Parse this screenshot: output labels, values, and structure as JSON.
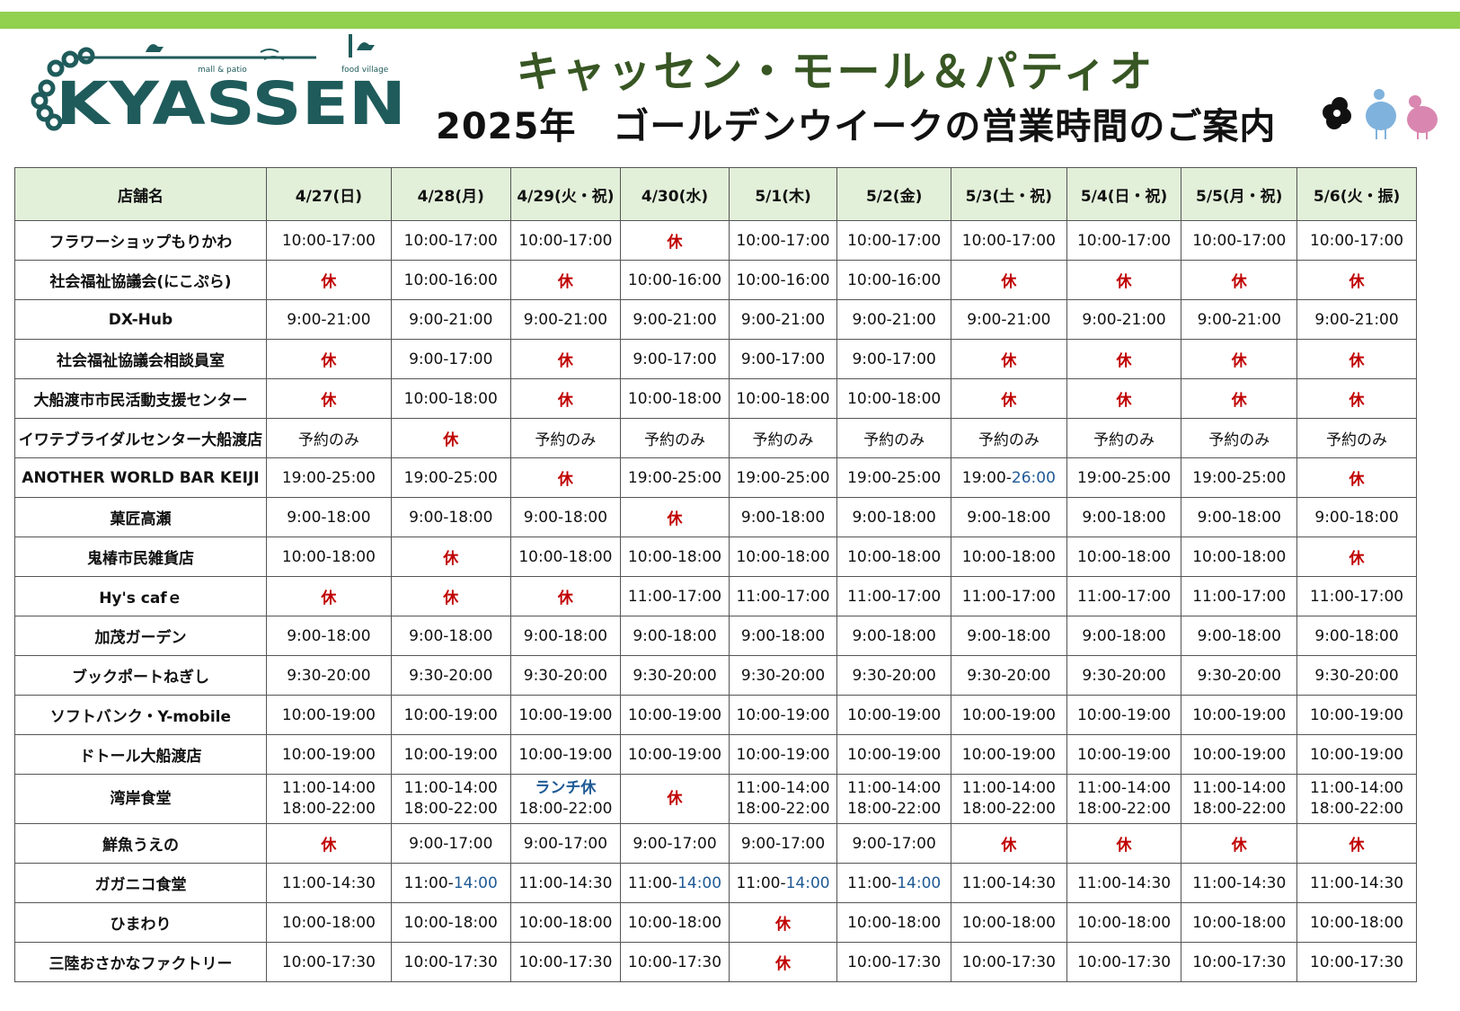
{
  "header": {
    "logo_text": "KYASSEN",
    "logo_small_1": "mall & patio",
    "logo_small_2": "food village",
    "title": "キャッセン・モール＆パティオ",
    "subtitle": "2025年　ゴールデンウイークの営業時間のご案内"
  },
  "colors": {
    "top_bar": "#92d050",
    "title_green": "#375623",
    "header_bg": "#e2efd9",
    "closed_red": "#c00000",
    "note_blue": "#1f5a96",
    "logo_teal": "#1f5b5b"
  },
  "table": {
    "columns": [
      "店舗名",
      "4/27(日)",
      "4/28(月)",
      "4/29(火・祝)",
      "4/30(水)",
      "5/1(木)",
      "5/2(金)",
      "5/3(土・祝)",
      "5/4(日・祝)",
      "5/5(月・祝)",
      "5/6(火・振)"
    ],
    "rows": [
      {
        "name": "フラワーショップもりかわ",
        "cells": [
          [
            "10:00-17:00"
          ],
          [
            "10:00-17:00"
          ],
          [
            "10:00-17:00"
          ],
          [
            "休"
          ],
          [
            "10:00-17:00"
          ],
          [
            "10:00-17:00"
          ],
          [
            "10:00-17:00"
          ],
          [
            "10:00-17:00"
          ],
          [
            "10:00-17:00"
          ],
          [
            "10:00-17:00"
          ]
        ]
      },
      {
        "name": "社会福祉協議会(にこぷら)",
        "cells": [
          [
            "休"
          ],
          [
            "10:00-16:00"
          ],
          [
            "休"
          ],
          [
            "10:00-16:00"
          ],
          [
            "10:00-16:00"
          ],
          [
            "10:00-16:00"
          ],
          [
            "休"
          ],
          [
            "休"
          ],
          [
            "休"
          ],
          [
            "休"
          ]
        ]
      },
      {
        "name": "DX-Hub",
        "cells": [
          [
            "9:00-21:00"
          ],
          [
            "9:00-21:00"
          ],
          [
            "9:00-21:00"
          ],
          [
            "9:00-21:00"
          ],
          [
            "9:00-21:00"
          ],
          [
            "9:00-21:00"
          ],
          [
            "9:00-21:00"
          ],
          [
            "9:00-21:00"
          ],
          [
            "9:00-21:00"
          ],
          [
            "9:00-21:00"
          ]
        ]
      },
      {
        "name": "社会福祉協議会相談員室",
        "cells": [
          [
            "休"
          ],
          [
            "9:00-17:00"
          ],
          [
            "休"
          ],
          [
            "9:00-17:00"
          ],
          [
            "9:00-17:00"
          ],
          [
            "9:00-17:00"
          ],
          [
            "休"
          ],
          [
            "休"
          ],
          [
            "休"
          ],
          [
            "休"
          ]
        ]
      },
      {
        "name": "大船渡市市民活動支援センター",
        "cells": [
          [
            "休"
          ],
          [
            "10:00-18:00"
          ],
          [
            "休"
          ],
          [
            "10:00-18:00"
          ],
          [
            "10:00-18:00"
          ],
          [
            "10:00-18:00"
          ],
          [
            "休"
          ],
          [
            "休"
          ],
          [
            "休"
          ],
          [
            "休"
          ]
        ]
      },
      {
        "name": "イワテブライダルセンター大船渡店",
        "cells": [
          [
            "予約のみ"
          ],
          [
            "休"
          ],
          [
            "予約のみ"
          ],
          [
            "予約のみ"
          ],
          [
            "予約のみ"
          ],
          [
            "予約のみ"
          ],
          [
            "予約のみ"
          ],
          [
            "予約のみ"
          ],
          [
            "予約のみ"
          ],
          [
            "予約のみ"
          ]
        ]
      },
      {
        "name": "ANOTHER WORLD BAR KEIJI",
        "cells": [
          [
            "19:00-25:00"
          ],
          [
            "19:00-25:00"
          ],
          [
            "休"
          ],
          [
            "19:00-25:00"
          ],
          [
            "19:00-25:00"
          ],
          [
            "19:00-25:00"
          ],
          [
            "19:00-",
            "26:00"
          ],
          [
            "19:00-25:00"
          ],
          [
            "19:00-25:00"
          ],
          [
            "休"
          ]
        ]
      },
      {
        "name": "菓匠高瀬",
        "cells": [
          [
            "9:00-18:00"
          ],
          [
            "9:00-18:00"
          ],
          [
            "9:00-18:00"
          ],
          [
            "休"
          ],
          [
            "9:00-18:00"
          ],
          [
            "9:00-18:00"
          ],
          [
            "9:00-18:00"
          ],
          [
            "9:00-18:00"
          ],
          [
            "9:00-18:00"
          ],
          [
            "9:00-18:00"
          ]
        ]
      },
      {
        "name": "鬼椿市民雑貨店",
        "cells": [
          [
            "10:00-18:00"
          ],
          [
            "休"
          ],
          [
            "10:00-18:00"
          ],
          [
            "10:00-18:00"
          ],
          [
            "10:00-18:00"
          ],
          [
            "10:00-18:00"
          ],
          [
            "10:00-18:00"
          ],
          [
            "10:00-18:00"
          ],
          [
            "10:00-18:00"
          ],
          [
            "休"
          ]
        ]
      },
      {
        "name": "Hy's cafｅ",
        "cells": [
          [
            "休"
          ],
          [
            "休"
          ],
          [
            "休"
          ],
          [
            "11:00-17:00"
          ],
          [
            "11:00-17:00"
          ],
          [
            "11:00-17:00"
          ],
          [
            "11:00-17:00"
          ],
          [
            "11:00-17:00"
          ],
          [
            "11:00-17:00"
          ],
          [
            "11:00-17:00"
          ]
        ]
      },
      {
        "name": "加茂ガーデン",
        "cells": [
          [
            "9:00-18:00"
          ],
          [
            "9:00-18:00"
          ],
          [
            "9:00-18:00"
          ],
          [
            "9:00-18:00"
          ],
          [
            "9:00-18:00"
          ],
          [
            "9:00-18:00"
          ],
          [
            "9:00-18:00"
          ],
          [
            "9:00-18:00"
          ],
          [
            "9:00-18:00"
          ],
          [
            "9:00-18:00"
          ]
        ]
      },
      {
        "name": "ブックポートねぎし",
        "cells": [
          [
            "9:30-20:00"
          ],
          [
            "9:30-20:00"
          ],
          [
            "9:30-20:00"
          ],
          [
            "9:30-20:00"
          ],
          [
            "9:30-20:00"
          ],
          [
            "9:30-20:00"
          ],
          [
            "9:30-20:00"
          ],
          [
            "9:30-20:00"
          ],
          [
            "9:30-20:00"
          ],
          [
            "9:30-20:00"
          ]
        ]
      },
      {
        "name": "ソフトバンク・Y-mobile",
        "cells": [
          [
            "10:00-19:00"
          ],
          [
            "10:00-19:00"
          ],
          [
            "10:00-19:00"
          ],
          [
            "10:00-19:00"
          ],
          [
            "10:00-19:00"
          ],
          [
            "10:00-19:00"
          ],
          [
            "10:00-19:00"
          ],
          [
            "10:00-19:00"
          ],
          [
            "10:00-19:00"
          ],
          [
            "10:00-19:00"
          ]
        ]
      },
      {
        "name": "ドトール大船渡店",
        "cells": [
          [
            "10:00-19:00"
          ],
          [
            "10:00-19:00"
          ],
          [
            "10:00-19:00"
          ],
          [
            "10:00-19:00"
          ],
          [
            "10:00-19:00"
          ],
          [
            "10:00-19:00"
          ],
          [
            "10:00-19:00"
          ],
          [
            "10:00-19:00"
          ],
          [
            "10:00-19:00"
          ],
          [
            "10:00-19:00"
          ]
        ]
      },
      {
        "name": "湾岸食堂",
        "cells": [
          [
            "11:00-14:00",
            "18:00-22:00"
          ],
          [
            "11:00-14:00",
            "18:00-22:00"
          ],
          [
            "ランチ休",
            "18:00-22:00"
          ],
          [
            "休"
          ],
          [
            "11:00-14:00",
            "18:00-22:00"
          ],
          [
            "11:00-14:00",
            "18:00-22:00"
          ],
          [
            "11:00-14:00",
            "18:00-22:00"
          ],
          [
            "11:00-14:00",
            "18:00-22:00"
          ],
          [
            "11:00-14:00",
            "18:00-22:00"
          ],
          [
            "11:00-14:00",
            "18:00-22:00"
          ]
        ]
      },
      {
        "name": "鮮魚うえの",
        "cells": [
          [
            "休"
          ],
          [
            "9:00-17:00"
          ],
          [
            "9:00-17:00"
          ],
          [
            "9:00-17:00"
          ],
          [
            "9:00-17:00"
          ],
          [
            "9:00-17:00"
          ],
          [
            "休"
          ],
          [
            "休"
          ],
          [
            "休"
          ],
          [
            "休"
          ]
        ]
      },
      {
        "name": "ガガニコ食堂",
        "cells": [
          [
            "11:00-14:30"
          ],
          [
            "11:00-",
            "14:00"
          ],
          [
            "11:00-14:30"
          ],
          [
            "11:00-",
            "14:00"
          ],
          [
            "11:00-",
            "14:00"
          ],
          [
            "11:00-",
            "14:00"
          ],
          [
            "11:00-14:30"
          ],
          [
            "11:00-14:30"
          ],
          [
            "11:00-14:30"
          ],
          [
            "11:00-14:30"
          ]
        ]
      },
      {
        "name": "ひまわり",
        "cells": [
          [
            "10:00-18:00"
          ],
          [
            "10:00-18:00"
          ],
          [
            "10:00-18:00"
          ],
          [
            "10:00-18:00"
          ],
          [
            "休"
          ],
          [
            "10:00-18:00"
          ],
          [
            "10:00-18:00"
          ],
          [
            "10:00-18:00"
          ],
          [
            "10:00-18:00"
          ],
          [
            "10:00-18:00"
          ]
        ]
      },
      {
        "name": "三陸おさかなファクトリー",
        "cells": [
          [
            "10:00-17:30"
          ],
          [
            "10:00-17:30"
          ],
          [
            "10:00-17:30"
          ],
          [
            "10:00-17:30"
          ],
          [
            "休"
          ],
          [
            "10:00-17:30"
          ],
          [
            "10:00-17:30"
          ],
          [
            "10:00-17:30"
          ],
          [
            "10:00-17:30"
          ],
          [
            "10:00-17:30"
          ]
        ]
      }
    ]
  }
}
